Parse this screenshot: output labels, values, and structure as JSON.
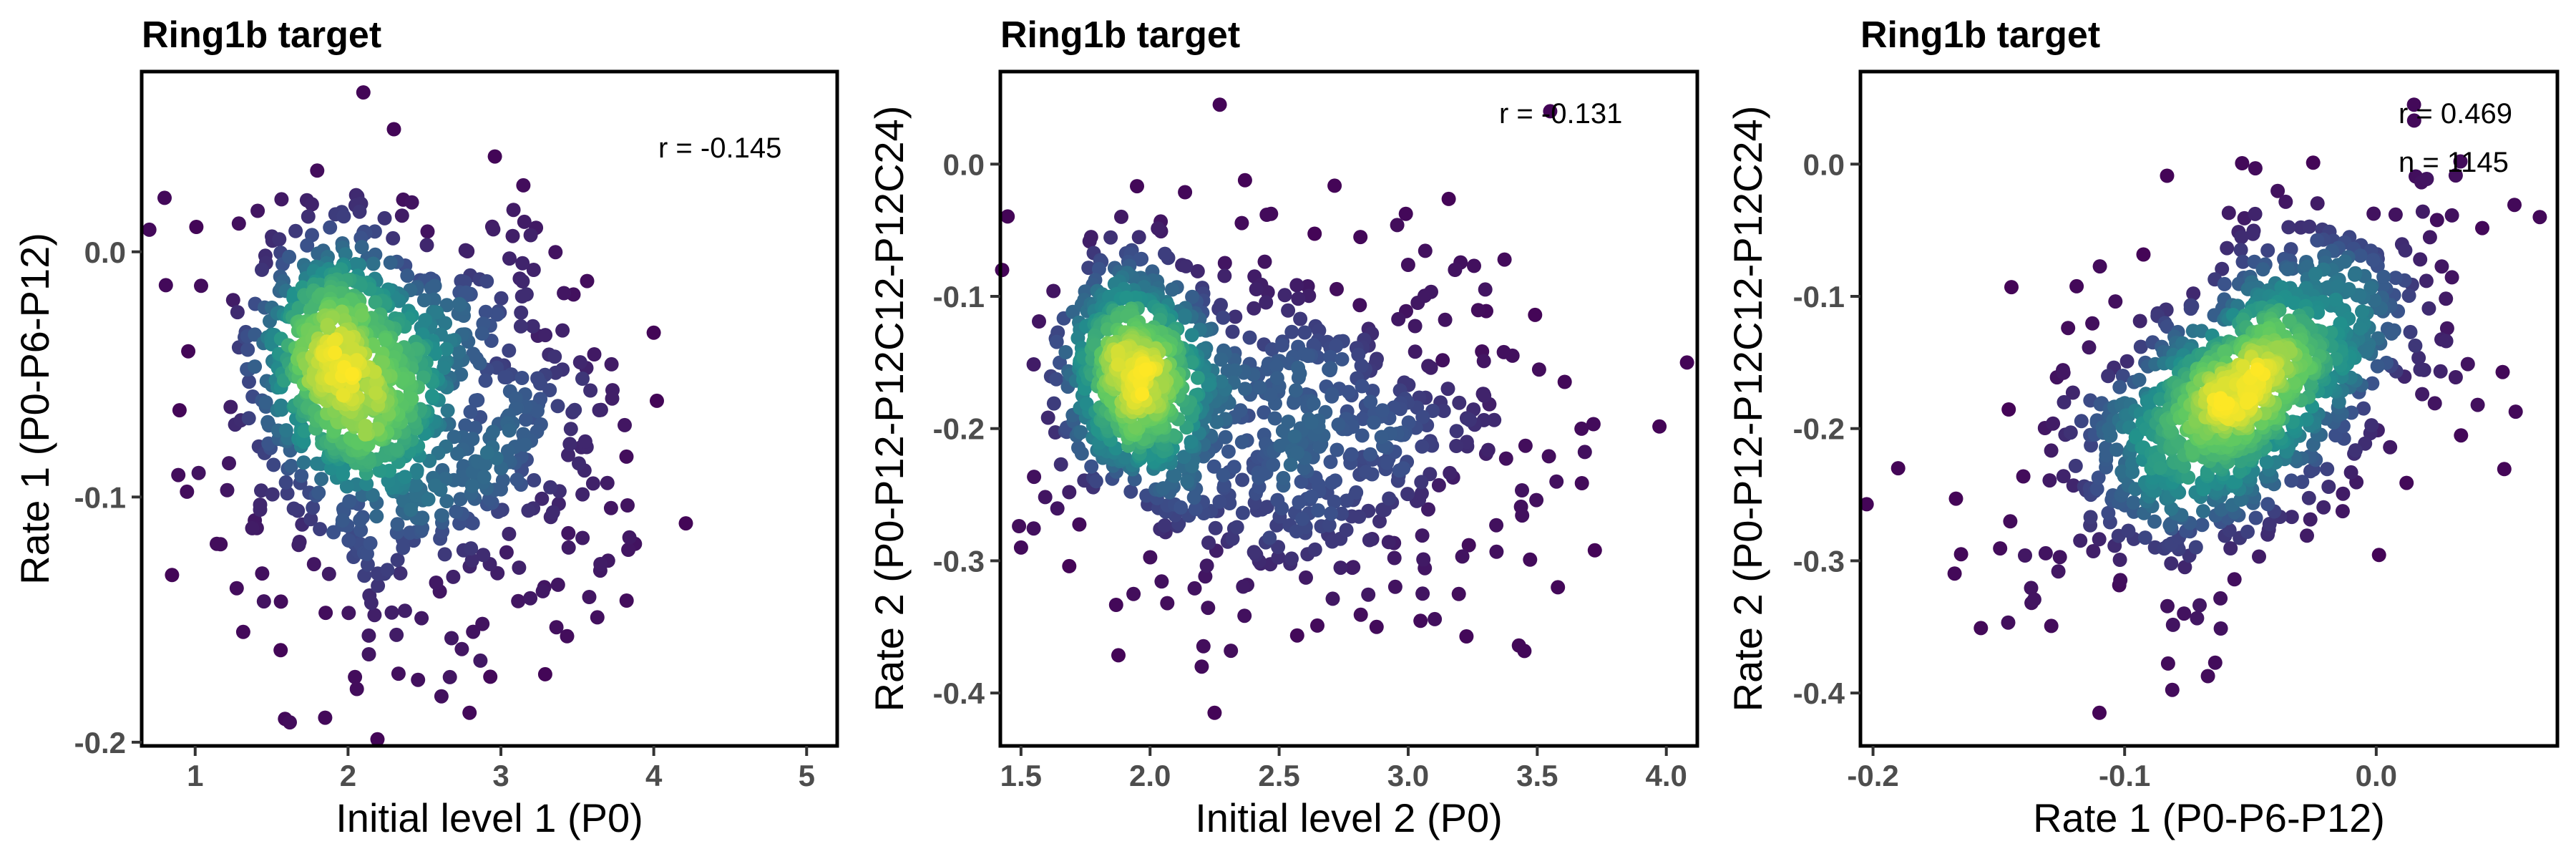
{
  "chart_data": [
    {
      "type": "scatter",
      "title": "Ring1b target",
      "xlabel": "Initial level 1 (P0)",
      "ylabel": "Rate 1 (P0-P6-P12)",
      "xlim": [
        0.65,
        5.2
      ],
      "ylim": [
        -0.2015,
        0.0735
      ],
      "xticks": [
        "1",
        "2",
        "3",
        "4",
        "5"
      ],
      "yticks": [
        "0.0",
        "-0.1",
        "-0.2"
      ],
      "xtick_values": [
        1,
        2,
        3,
        4,
        5
      ],
      "ytick_values": [
        0.0,
        -0.1,
        -0.2
      ],
      "annotations": [
        "r =  -0.145"
      ],
      "color_scale": [
        "#440154",
        "#3b528b",
        "#21918c",
        "#5ec962",
        "#fde725"
      ],
      "clusters": [
        {
          "cx": 1.95,
          "cy": -0.045,
          "sx": 0.28,
          "sy": 0.028,
          "rho": -0.2,
          "n": 520
        },
        {
          "cx": 2.65,
          "cy": -0.06,
          "sx": 0.55,
          "sy": 0.038,
          "rho": -0.1,
          "n": 380
        },
        {
          "cx": 2.4,
          "cy": -0.09,
          "sx": 0.7,
          "sy": 0.045,
          "rho": 0.0,
          "n": 245
        }
      ],
      "outliers": [
        [
          2.1,
          0.065
        ],
        [
          1.85,
          -0.19
        ],
        [
          0.8,
          0.022
        ],
        [
          3.65,
          -0.13
        ],
        [
          4.0,
          -0.033
        ],
        [
          2.3,
          0.05
        ],
        [
          0.7,
          0.009
        ]
      ],
      "n_points": 1145
    },
    {
      "type": "scatter",
      "title": "Ring1b target",
      "xlabel": "Initial level 2 (P0)",
      "ylabel": "Rate 2 (P0-P12-P12C12-P12C24)",
      "xlim": [
        1.42,
        4.12
      ],
      "ylim": [
        -0.44,
        0.07
      ],
      "xticks": [
        "1.5",
        "2.0",
        "2.5",
        "3.0",
        "3.5",
        "4.0"
      ],
      "yticks": [
        "0.0",
        "-0.1",
        "-0.2",
        "-0.3",
        "-0.4"
      ],
      "xtick_values": [
        1.5,
        2.0,
        2.5,
        3.0,
        3.5,
        4.0
      ],
      "ytick_values": [
        0.0,
        -0.1,
        -0.2,
        -0.3,
        -0.4
      ],
      "annotations": [
        "r =  -0.131"
      ],
      "color_scale": [
        "#440154",
        "#3b528b",
        "#21918c",
        "#5ec962",
        "#fde725"
      ],
      "clusters": [
        {
          "cx": 1.95,
          "cy": -0.16,
          "sx": 0.14,
          "sy": 0.045,
          "rho": -0.1,
          "n": 560
        },
        {
          "cx": 2.5,
          "cy": -0.21,
          "sx": 0.38,
          "sy": 0.055,
          "rho": 0.0,
          "n": 380
        },
        {
          "cx": 2.7,
          "cy": -0.2,
          "sx": 0.55,
          "sy": 0.075,
          "rho": 0.0,
          "n": 205
        }
      ],
      "outliers": [
        [
          2.27,
          0.045
        ],
        [
          2.25,
          -0.415
        ],
        [
          2.2,
          -0.38
        ],
        [
          3.55,
          0.04
        ],
        [
          4.08,
          -0.15
        ],
        [
          3.58,
          -0.32
        ],
        [
          1.5,
          -0.29
        ]
      ],
      "n_points": 1145
    },
    {
      "type": "scatter",
      "title": "Ring1b target",
      "xlabel": "Rate 1 (P0-P6-P12)",
      "ylabel": "Rate 2 (P0-P12-P12C12-P12C24)",
      "xlim": [
        -0.205,
        0.072
      ],
      "ylim": [
        -0.44,
        0.07
      ],
      "xticks": [
        "-0.2",
        "-0.1",
        "0.0"
      ],
      "yticks": [
        "0.0",
        "-0.1",
        "-0.2",
        "-0.3",
        "-0.4"
      ],
      "xtick_values": [
        -0.2,
        -0.1,
        0.0
      ],
      "ytick_values": [
        0.0,
        -0.1,
        -0.2,
        -0.3,
        -0.4
      ],
      "annotations": [
        "r =  0.469",
        "n = 1145"
      ],
      "color_scale": [
        "#440154",
        "#3b528b",
        "#21918c",
        "#5ec962",
        "#fde725"
      ],
      "clusters": [
        {
          "cx": -0.055,
          "cy": -0.17,
          "sx": 0.028,
          "sy": 0.05,
          "rho": 0.55,
          "n": 620
        },
        {
          "cx": -0.05,
          "cy": -0.18,
          "sx": 0.045,
          "sy": 0.075,
          "rho": 0.45,
          "n": 525
        }
      ],
      "outliers": [
        [
          -0.19,
          -0.23
        ],
        [
          -0.11,
          -0.415
        ],
        [
          0.065,
          -0.04
        ],
        [
          0.015,
          0.045
        ],
        [
          -0.165,
          -0.295
        ],
        [
          -0.145,
          -0.093
        ]
      ],
      "n_points": 1145
    }
  ]
}
